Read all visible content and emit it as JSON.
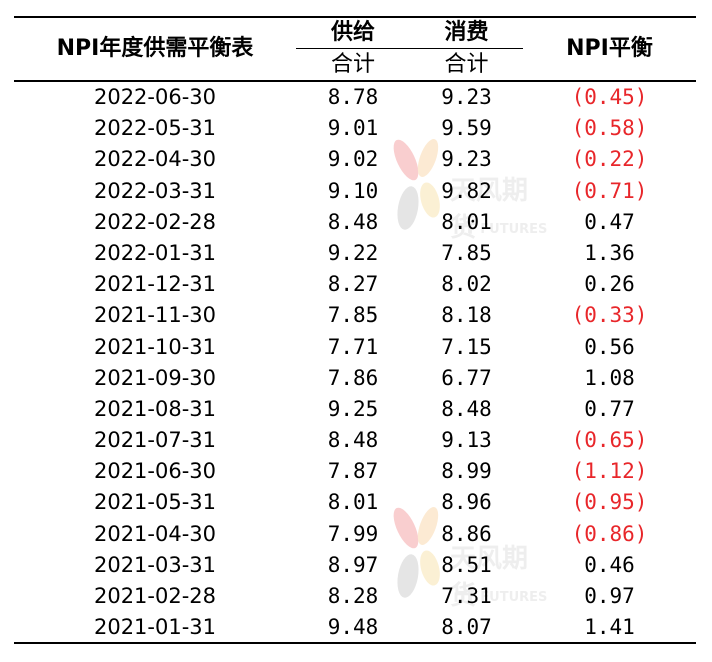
{
  "header": {
    "title": "NPI年度供需平衡表",
    "supply": "供给",
    "demand": "消费",
    "supply_sub": "合计",
    "demand_sub": "合计",
    "npi": "NPI平衡"
  },
  "watermark": {
    "text": "天风期货",
    "text_en": "TF FUTURES"
  },
  "rows": [
    {
      "date": "2022-06-30",
      "supply": "8.78",
      "demand": "9.23",
      "npi": "(0.45)",
      "negative": true
    },
    {
      "date": "2022-05-31",
      "supply": "9.01",
      "demand": "9.59",
      "npi": "(0.58)",
      "negative": true
    },
    {
      "date": "2022-04-30",
      "supply": "9.02",
      "demand": "9.23",
      "npi": "(0.22)",
      "negative": true
    },
    {
      "date": "2022-03-31",
      "supply": "9.10",
      "demand": "9.82",
      "npi": "(0.71)",
      "negative": true
    },
    {
      "date": "2022-02-28",
      "supply": "8.48",
      "demand": "8.01",
      "npi": "0.47",
      "negative": false
    },
    {
      "date": "2022-01-31",
      "supply": "9.22",
      "demand": "7.85",
      "npi": "1.36",
      "negative": false
    },
    {
      "date": "2021-12-31",
      "supply": "8.27",
      "demand": "8.02",
      "npi": "0.26",
      "negative": false
    },
    {
      "date": "2021-11-30",
      "supply": "7.85",
      "demand": "8.18",
      "npi": "(0.33)",
      "negative": true
    },
    {
      "date": "2021-10-31",
      "supply": "7.71",
      "demand": "7.15",
      "npi": "0.56",
      "negative": false
    },
    {
      "date": "2021-09-30",
      "supply": "7.86",
      "demand": "6.77",
      "npi": "1.08",
      "negative": false
    },
    {
      "date": "2021-08-31",
      "supply": "9.25",
      "demand": "8.48",
      "npi": "0.77",
      "negative": false
    },
    {
      "date": "2021-07-31",
      "supply": "8.48",
      "demand": "9.13",
      "npi": "(0.65)",
      "negative": true
    },
    {
      "date": "2021-06-30",
      "supply": "7.87",
      "demand": "8.99",
      "npi": "(1.12)",
      "negative": true
    },
    {
      "date": "2021-05-31",
      "supply": "8.01",
      "demand": "8.96",
      "npi": "(0.95)",
      "negative": true
    },
    {
      "date": "2021-04-30",
      "supply": "7.99",
      "demand": "8.86",
      "npi": "(0.86)",
      "negative": true
    },
    {
      "date": "2021-03-31",
      "supply": "8.97",
      "demand": "8.51",
      "npi": "0.46",
      "negative": false
    },
    {
      "date": "2021-02-28",
      "supply": "8.28",
      "demand": "7.31",
      "npi": "0.97",
      "negative": false
    },
    {
      "date": "2021-01-31",
      "supply": "9.48",
      "demand": "8.07",
      "npi": "1.41",
      "negative": false
    }
  ],
  "colors": {
    "negative": "#e8262a",
    "text": "#000000",
    "watermark": "#b5b5b5"
  }
}
